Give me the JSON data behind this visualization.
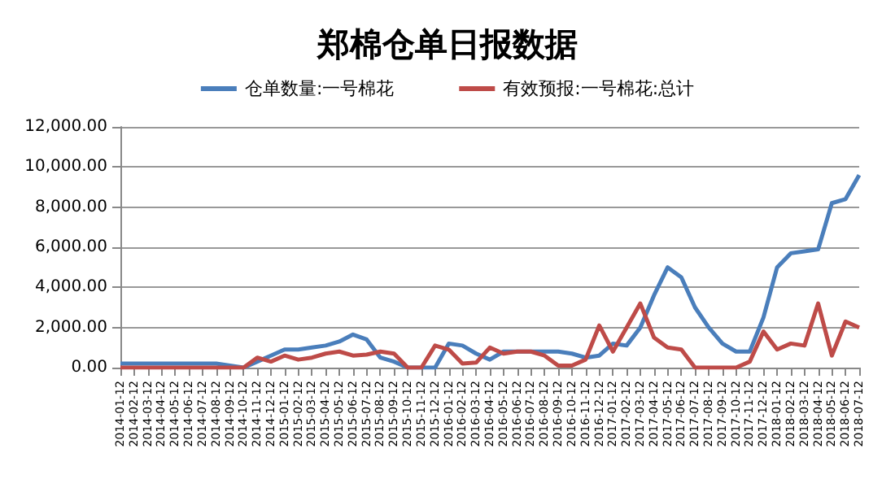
{
  "chart_data": {
    "type": "line",
    "title": "郑棉仓单日报数据",
    "categories": [
      "2014-01-12",
      "2014-02-12",
      "2014-03-12",
      "2014-04-12",
      "2014-05-12",
      "2014-06-12",
      "2014-07-12",
      "2014-08-12",
      "2014-09-12",
      "2014-10-12",
      "2014-11-12",
      "2014-12-12",
      "2015-01-12",
      "2015-02-12",
      "2015-03-12",
      "2015-04-12",
      "2015-05-12",
      "2015-06-12",
      "2015-07-12",
      "2015-08-12",
      "2015-09-12",
      "2015-10-12",
      "2015-11-12",
      "2015-12-12",
      "2016-01-12",
      "2016-02-12",
      "2016-03-12",
      "2016-04-12",
      "2016-05-12",
      "2016-06-12",
      "2016-07-12",
      "2016-08-12",
      "2016-09-12",
      "2016-10-12",
      "2016-11-12",
      "2016-12-12",
      "2017-01-12",
      "2017-02-12",
      "2017-03-12",
      "2017-04-12",
      "2017-05-12",
      "2017-06-12",
      "2017-07-12",
      "2017-08-12",
      "2017-09-12",
      "2017-10-12",
      "2017-11-12",
      "2017-12-12",
      "2018-01-12",
      "2018-02-12",
      "2018-03-12",
      "2018-04-12",
      "2018-05-12",
      "2018-06-12",
      "2018-07-12"
    ],
    "series": [
      {
        "name": "仓单数量:一号棉花",
        "color": "#4a7ebb",
        "values": [
          200,
          200,
          200,
          200,
          200,
          200,
          200,
          200,
          100,
          0,
          300,
          600,
          900,
          900,
          1000,
          1100,
          1300,
          1650,
          1400,
          500,
          300,
          0,
          0,
          0,
          1200,
          1100,
          700,
          400,
          800,
          800,
          800,
          800,
          800,
          700,
          500,
          600,
          1200,
          1100,
          2000,
          3600,
          5000,
          4500,
          3000,
          2000,
          1200,
          800,
          800,
          2500,
          5000,
          5700,
          5800,
          5900,
          8200,
          8400,
          9600
        ]
      },
      {
        "name": "有效预报:一号棉花:总计",
        "color": "#be4b48",
        "values": [
          0,
          0,
          0,
          0,
          0,
          0,
          0,
          0,
          0,
          0,
          500,
          300,
          600,
          400,
          500,
          700,
          800,
          600,
          650,
          800,
          700,
          0,
          0,
          1100,
          900,
          200,
          250,
          1000,
          700,
          800,
          800,
          600,
          100,
          100,
          400,
          2100,
          800,
          2000,
          3200,
          1500,
          1000,
          900,
          0,
          0,
          0,
          0,
          300,
          1800,
          900,
          1200,
          1100,
          3200,
          600,
          2300,
          2000
        ]
      }
    ],
    "ylim": [
      0,
      12000
    ],
    "yticks": [
      {
        "value": 0,
        "label": "0.00"
      },
      {
        "value": 2000,
        "label": "2,000.00"
      },
      {
        "value": 4000,
        "label": "4,000.00"
      },
      {
        "value": 6000,
        "label": "6,000.00"
      },
      {
        "value": 8000,
        "label": "8,000.00"
      },
      {
        "value": 10000,
        "label": "10,000.00"
      },
      {
        "value": 12000,
        "label": "12,000.00"
      }
    ],
    "grid": "y",
    "legend": "top",
    "marker": "none",
    "line_style": "solid"
  }
}
